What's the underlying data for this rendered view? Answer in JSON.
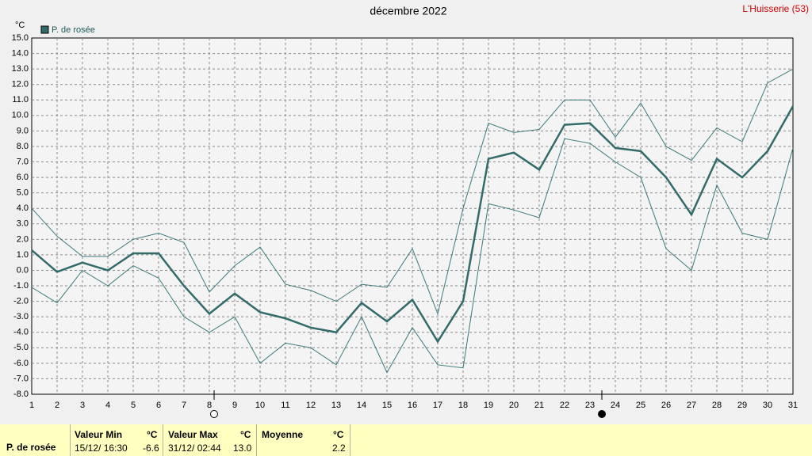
{
  "chart_data": {
    "type": "line",
    "title": "décembre 2022",
    "location": "L'Huisserie (53)",
    "y_unit": "°C",
    "x": [
      1,
      2,
      3,
      4,
      5,
      6,
      7,
      8,
      9,
      10,
      11,
      12,
      13,
      14,
      15,
      16,
      17,
      18,
      19,
      20,
      21,
      22,
      23,
      24,
      25,
      26,
      27,
      28,
      29,
      30,
      31
    ],
    "xlim": [
      1,
      31
    ],
    "xticks": [
      1,
      2,
      3,
      4,
      5,
      6,
      7,
      8,
      9,
      10,
      11,
      12,
      13,
      14,
      15,
      16,
      17,
      18,
      19,
      20,
      21,
      22,
      23,
      24,
      25,
      26,
      27,
      28,
      29,
      30,
      31
    ],
    "ylim": [
      -8,
      15
    ],
    "yticks": [
      {
        "value": -8,
        "label": "-8.0"
      },
      {
        "value": -7,
        "label": "-7.0"
      },
      {
        "value": -6,
        "label": "-6.0"
      },
      {
        "value": -5,
        "label": "-5.0"
      },
      {
        "value": -4,
        "label": "-4.0"
      },
      {
        "value": -3,
        "label": "-3.0"
      },
      {
        "value": -2,
        "label": "-2.0"
      },
      {
        "value": -1,
        "label": "-1.0"
      },
      {
        "value": 0,
        "label": "0.0"
      },
      {
        "value": 1,
        "label": "1.0"
      },
      {
        "value": 2,
        "label": "2.0"
      },
      {
        "value": 3,
        "label": "3.0"
      },
      {
        "value": 4,
        "label": "4.0"
      },
      {
        "value": 5,
        "label": "5.0"
      },
      {
        "value": 6,
        "label": "6.0"
      },
      {
        "value": 7,
        "label": "7.0"
      },
      {
        "value": 8,
        "label": "8.0"
      },
      {
        "value": 9,
        "label": "9.0"
      },
      {
        "value": 10,
        "label": "10.0"
      },
      {
        "value": 11,
        "label": "11.0"
      },
      {
        "value": 12,
        "label": "12.0"
      },
      {
        "value": 13,
        "label": "13.0"
      },
      {
        "value": 14,
        "label": "14.0"
      },
      {
        "value": 15,
        "label": "15.0"
      }
    ],
    "grid": true,
    "series": [
      {
        "name": "P. de rosée",
        "color": "#336b6b",
        "values": [
          1.3,
          -0.1,
          0.5,
          0.0,
          1.1,
          1.1,
          -1.0,
          -2.8,
          -1.5,
          -2.7,
          -3.1,
          -3.7,
          -4.0,
          -2.1,
          -3.3,
          -1.9,
          -4.6,
          -2.0,
          7.2,
          7.6,
          6.5,
          9.4,
          9.5,
          7.9,
          7.7,
          6.0,
          3.6,
          7.2,
          6.0,
          7.7,
          10.6
        ]
      },
      {
        "color": "#3a7a7a",
        "values": [
          4.0,
          2.2,
          0.9,
          0.9,
          2.0,
          2.4,
          1.8,
          -1.4,
          0.3,
          1.5,
          -0.9,
          -1.3,
          -2.0,
          -0.9,
          -1.1,
          1.4,
          -2.8,
          4.0,
          9.5,
          8.9,
          9.1,
          11.0,
          11.0,
          8.6,
          10.8,
          8.0,
          7.1,
          9.2,
          8.3,
          12.1,
          13.0
        ]
      },
      {
        "color": "#3a7a7a",
        "values": [
          -1.1,
          -2.1,
          0.0,
          -1.0,
          0.3,
          -0.5,
          -3.0,
          -4.0,
          -3.0,
          -6.0,
          -4.7,
          -5.0,
          -6.1,
          -3.0,
          -6.6,
          -3.7,
          -6.1,
          -6.3,
          4.3,
          3.9,
          3.4,
          8.5,
          8.2,
          7.0,
          6.0,
          1.4,
          0.0,
          5.5,
          2.4,
          2.0,
          7.9
        ]
      }
    ]
  },
  "summary": {
    "label": "P. de rosée",
    "min": {
      "title": "Valeur Min",
      "unit": "°C",
      "date": "15/12/  16:30",
      "value": "-6.6"
    },
    "max": {
      "title": "Valeur Max",
      "unit": "°C",
      "date": "31/12/  02:44",
      "value": "13.0"
    },
    "mean": {
      "title": "Moyenne",
      "unit": "°C",
      "value": "2.2"
    }
  }
}
